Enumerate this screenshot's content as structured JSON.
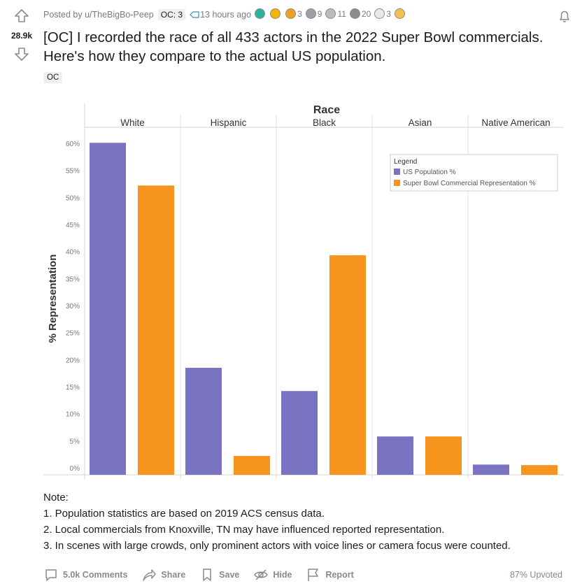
{
  "post": {
    "score": "28.9k",
    "posted_by": "Posted by u/TheBigBo-Peep",
    "user_flair": "OC: 3",
    "time": "13 hours ago",
    "awards": [
      {
        "icon": "wholesome-award-icon",
        "color": "#2bb3a0",
        "count": ""
      },
      {
        "icon": "clapping-award-icon",
        "color": "#f5b400",
        "count": ""
      },
      {
        "icon": "gold-award-icon",
        "color": "#f0a020",
        "count": "3"
      },
      {
        "icon": "helpful-award-icon",
        "color": "#9aa0a6",
        "count": "9"
      },
      {
        "icon": "silver-award-icon",
        "color": "#b9bcbf",
        "count": "11"
      },
      {
        "icon": "coin-award-icon",
        "color": "#8a8d90",
        "count": "20"
      },
      {
        "icon": "heart-eyes-award-icon",
        "color": "#e8e8e8",
        "count": "3"
      },
      {
        "icon": "fire-award-icon",
        "color": "#f2c14e",
        "count": ""
      }
    ],
    "title": "[OC] I recorded the race of all 433 actors in the 2022 Super Bowl commercials. Here's how they compare to the actual US population.",
    "tag": "OC"
  },
  "notes": {
    "heading": "Note:",
    "lines": [
      "1. Population statistics are based on 2019 ACS census data.",
      "2. Local commercials from Knoxville, TN may have influenced reported representation.",
      "3. In scenes with large crowds, only prominent actors with voice lines or camera focus were counted."
    ]
  },
  "actions": {
    "comments": "5.0k Comments",
    "share": "Share",
    "save": "Save",
    "hide": "Hide",
    "report": "Report",
    "upvoted": "87% Upvoted"
  },
  "chart_data": {
    "type": "bar",
    "title": "Race",
    "ylabel": "% Representation",
    "xlabel": "",
    "categories": [
      "White",
      "Hispanic",
      "Black",
      "Asian",
      "Native American"
    ],
    "series": [
      {
        "name": "US Population %",
        "color": "#7a73c1",
        "values": [
          60.1,
          18.5,
          14.2,
          5.8,
          0.6
        ]
      },
      {
        "name": "Super Bowl Commercial Representation %",
        "color": "#f7941d",
        "values": [
          52.2,
          2.2,
          39.3,
          5.8,
          0.5
        ]
      }
    ],
    "ylim": [
      0,
      60
    ],
    "yticks": [
      "0%",
      "5%",
      "10%",
      "15%",
      "20%",
      "25%",
      "30%",
      "35%",
      "40%",
      "45%",
      "50%",
      "55%",
      "60%"
    ],
    "legend_title": "Legend",
    "legend_position": "top-right",
    "grid": "vertical-category-dividers"
  }
}
